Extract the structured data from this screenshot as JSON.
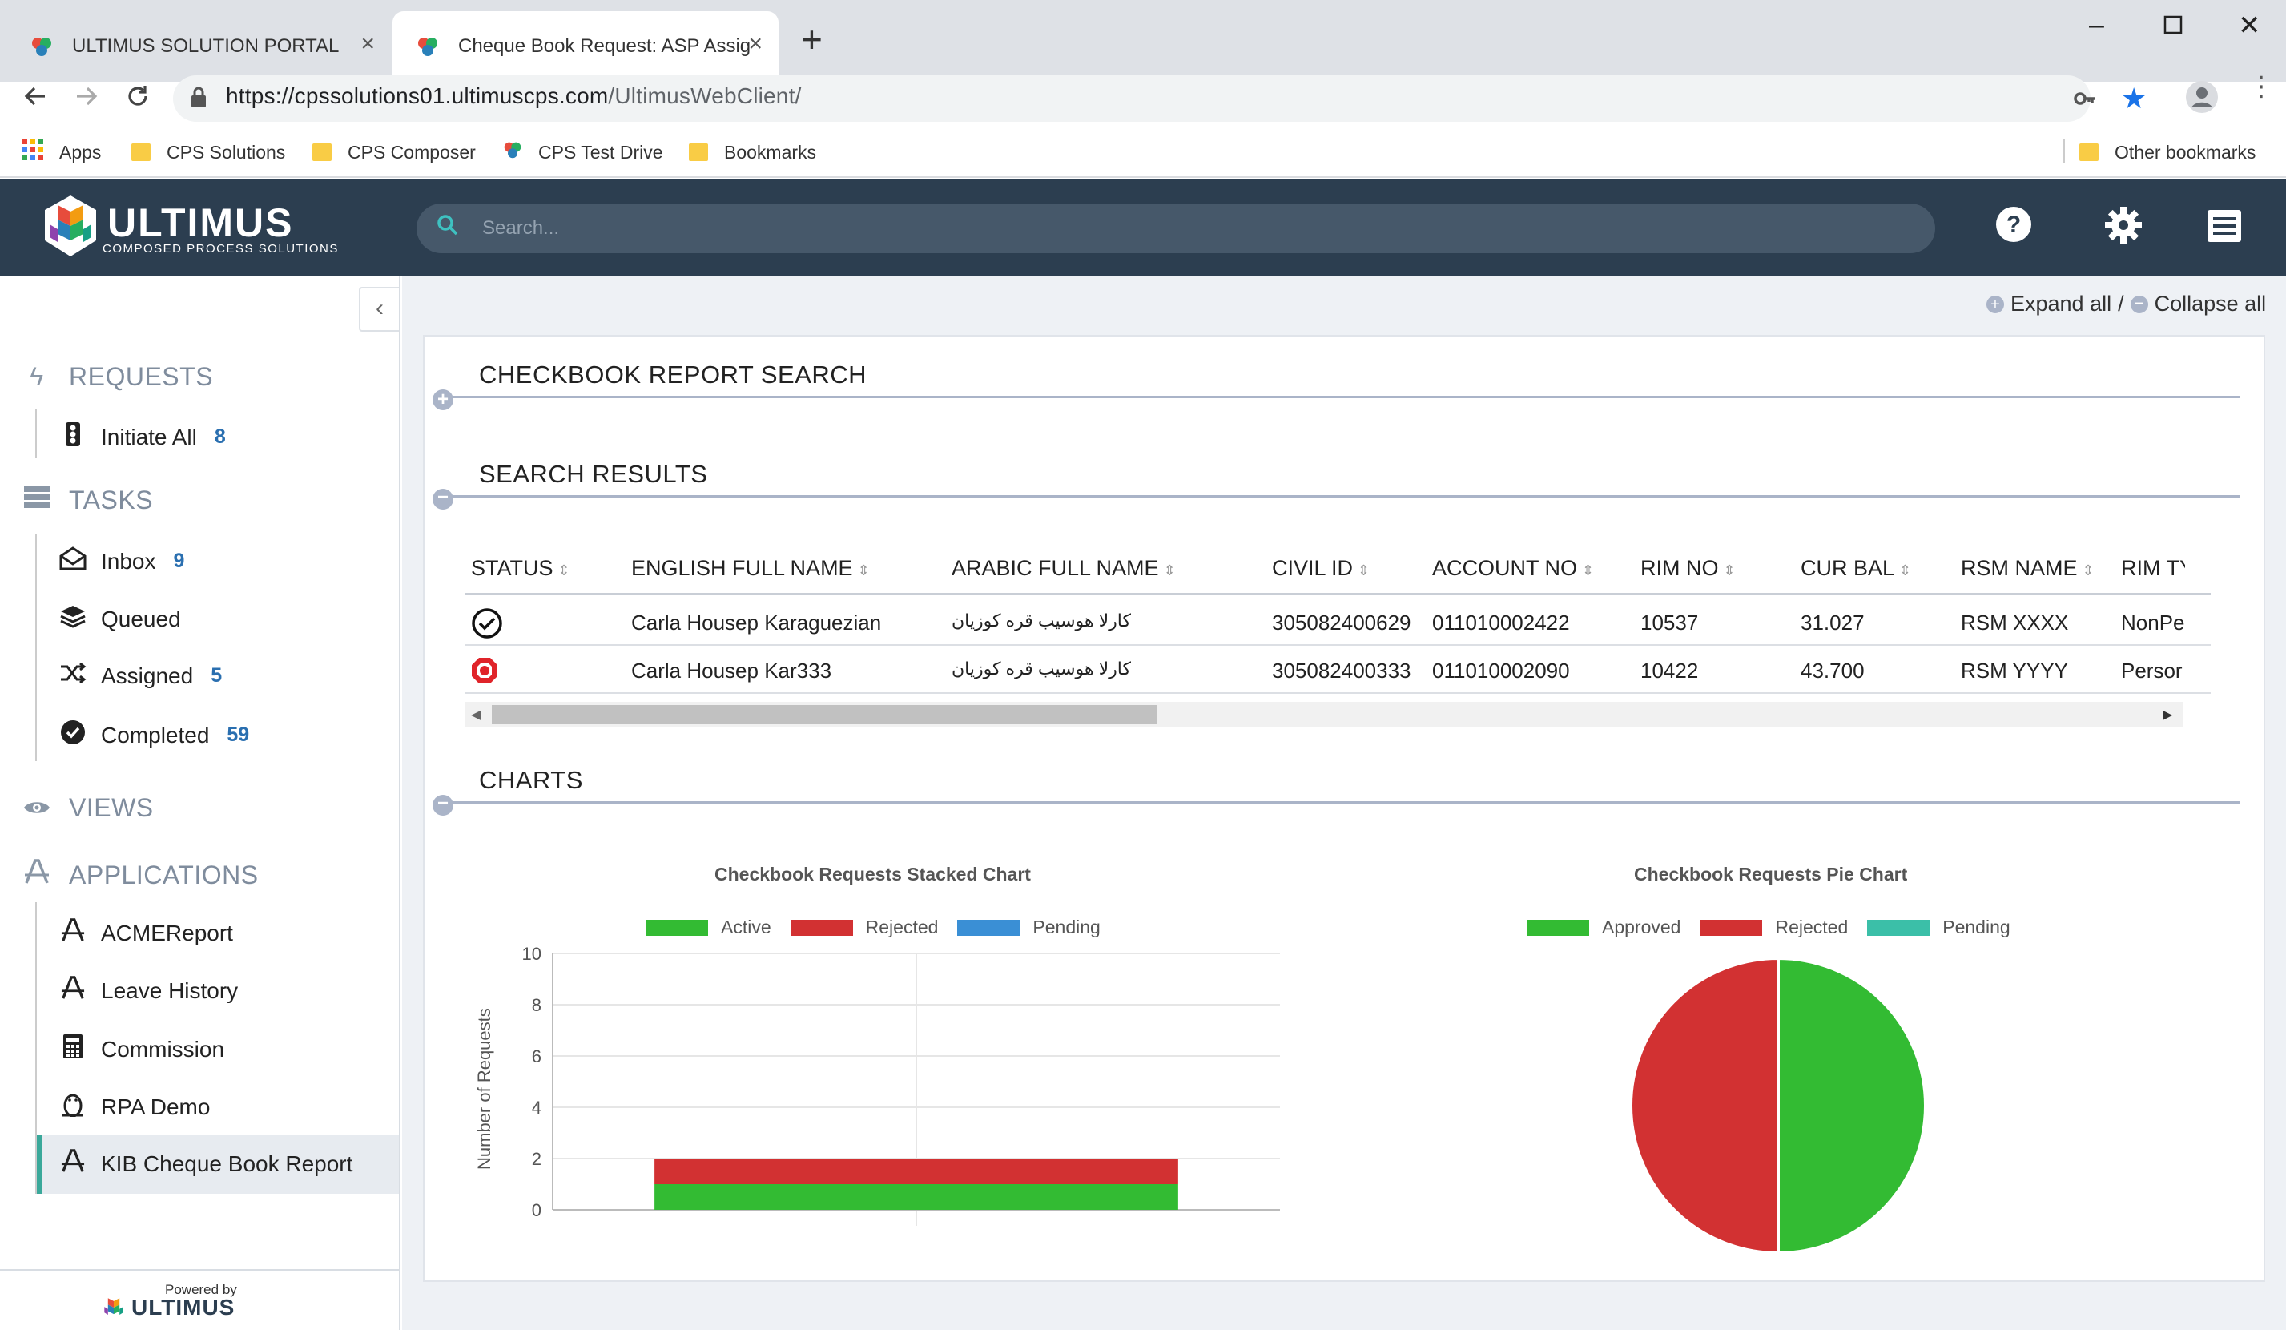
{
  "browser": {
    "tabs": [
      {
        "title": "ULTIMUS SOLUTION PORTAL"
      },
      {
        "title": "Cheque Book Request: ASP Assig"
      }
    ],
    "url_host": "https://cpssolutions01.ultimuscps.com",
    "url_path": "/UltimusWebClient/",
    "bookmarks": [
      "Apps",
      "CPS Solutions",
      "CPS Composer",
      "CPS Test Drive",
      "Bookmarks"
    ],
    "other_bookmarks": "Other bookmarks"
  },
  "header": {
    "logo_text": "ULTIMUS",
    "logo_sub": "COMPOSED PROCESS SOLUTIONS",
    "search_placeholder": "Search..."
  },
  "sidebar": {
    "requests_label": "REQUESTS",
    "requests": [
      {
        "label": "Initiate All",
        "count": "8"
      }
    ],
    "tasks_label": "TASKS",
    "tasks": [
      {
        "label": "Inbox",
        "count": "9"
      },
      {
        "label": "Queued",
        "count": ""
      },
      {
        "label": "Assigned",
        "count": "5"
      },
      {
        "label": "Completed",
        "count": "59"
      }
    ],
    "views_label": "VIEWS",
    "applications_label": "APPLICATIONS",
    "applications": [
      {
        "label": "ACMEReport"
      },
      {
        "label": "Leave History"
      },
      {
        "label": "Commission"
      },
      {
        "label": "RPA Demo"
      },
      {
        "label": "KIB Cheque Book Report"
      }
    ],
    "powered_by": "Powered by",
    "powered_logo": "ULTIMUS"
  },
  "main": {
    "expand_all": "Expand all",
    "sep": "/",
    "collapse_all": "Collapse all",
    "section_search": "CHECKBOOK REPORT SEARCH",
    "section_results": "SEARCH RESULTS",
    "section_charts": "CHARTS",
    "table": {
      "columns": [
        "STATUS",
        "ENGLISH FULL NAME",
        "ARABIC FULL NAME",
        "CIVIL ID",
        "ACCOUNT NO",
        "RIM NO",
        "CUR BAL",
        "RSM NAME",
        "RIM TY"
      ],
      "rows": [
        {
          "status": "approved",
          "english": "Carla Housep Karaguezian",
          "arabic": "كارلا هوسيب قره كوزيان",
          "civil": "305082400629",
          "account": "011010002422",
          "rim": "10537",
          "bal": "31.027",
          "rsm": "RSM XXXX",
          "rimtype": "NonPe"
        },
        {
          "status": "rejected",
          "english": "Carla Housep Kar333",
          "arabic": "كارلا هوسيب قره كوزيان",
          "civil": "305082400333",
          "account": "011010002090",
          "rim": "10422",
          "bal": "43.700",
          "rsm": "RSM YYYY",
          "rimtype": "Persor"
        }
      ]
    }
  },
  "chart_data": [
    {
      "type": "bar",
      "stacked": true,
      "title": "Checkbook Requests Stacked Chart",
      "categories": [
        ""
      ],
      "series": [
        {
          "name": "Active",
          "values": [
            1
          ],
          "color": "#33bb33"
        },
        {
          "name": "Rejected",
          "values": [
            1
          ],
          "color": "#d23132"
        },
        {
          "name": "Pending",
          "values": [
            0
          ],
          "color": "#3a8fd5"
        }
      ],
      "xlabel": "",
      "ylabel": "Number of Requests",
      "ylim": [
        0,
        10
      ],
      "yticks": [
        "0",
        "2",
        "4",
        "6",
        "8",
        "10"
      ],
      "legend": "top"
    },
    {
      "type": "pie",
      "title": "Checkbook Requests Pie Chart",
      "labels": [
        "Approved",
        "Rejected",
        "Pending"
      ],
      "values": [
        1,
        1,
        0
      ],
      "colors": [
        "#33bb33",
        "#d23132",
        "#3bbfa8"
      ],
      "legend": "top"
    }
  ]
}
